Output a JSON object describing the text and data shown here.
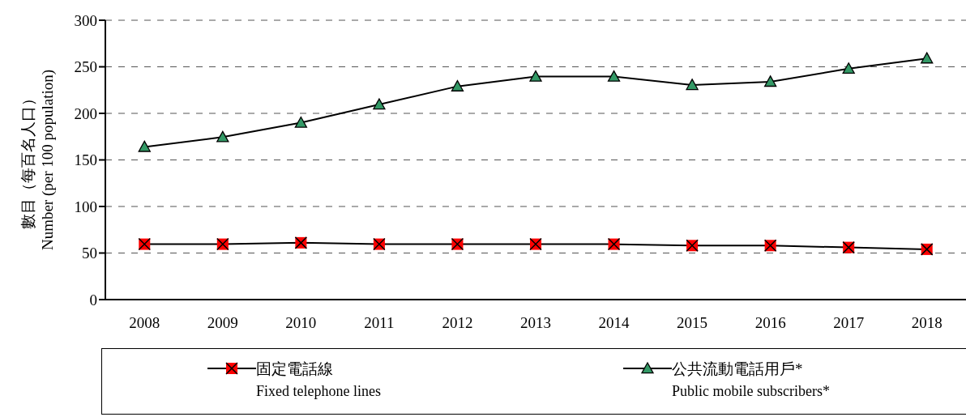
{
  "chart_data": {
    "type": "line",
    "ylabel": "數目（每百名人口）\nNumber (per 100 population)",
    "categories": [
      "2008",
      "2009",
      "2010",
      "2011",
      "2012",
      "2013",
      "2014",
      "2015",
      "2016",
      "2017",
      "2018"
    ],
    "series": [
      {
        "name": "固定電話線\nFixed telephone lines",
        "color": "#ff0000",
        "marker": "square",
        "values": [
          59.5,
          59.5,
          61,
          59.5,
          59.5,
          59.5,
          59.5,
          58,
          58,
          56,
          54
        ]
      },
      {
        "name": "公共流動電話用戶*\nPublic mobile subscribers*",
        "color": "#339966",
        "marker": "triangle",
        "values": [
          164,
          174.5,
          190,
          209.5,
          229,
          239.5,
          239.5,
          230.5,
          234,
          248,
          259
        ]
      }
    ],
    "ylim": [
      0,
      300
    ],
    "yticks": [
      0,
      50,
      100,
      150,
      200,
      250,
      300
    ],
    "grid": "y",
    "legend": "bottom",
    "line_style": "solid"
  }
}
